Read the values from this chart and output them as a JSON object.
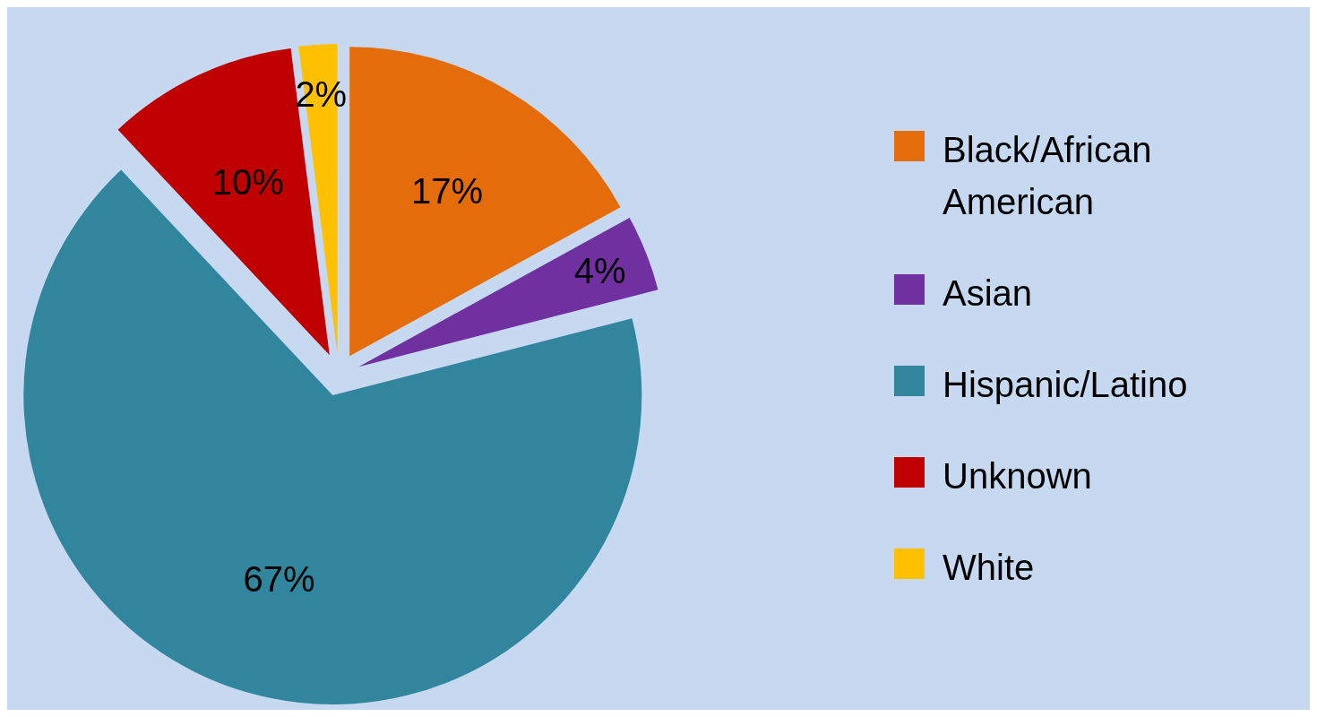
{
  "chart_data": {
    "type": "pie",
    "categories": [
      "Black/African American",
      "Asian",
      "Hispanic/Latino",
      "Unknown",
      "White"
    ],
    "values": [
      17,
      4,
      67,
      10,
      2
    ],
    "colors": [
      "#e46c0a",
      "#7030a0",
      "#31859c",
      "#c00000",
      "#ffc000"
    ],
    "value_labels": [
      "17%",
      "4%",
      "67%",
      "10%",
      "2%"
    ],
    "legend": "right"
  }
}
